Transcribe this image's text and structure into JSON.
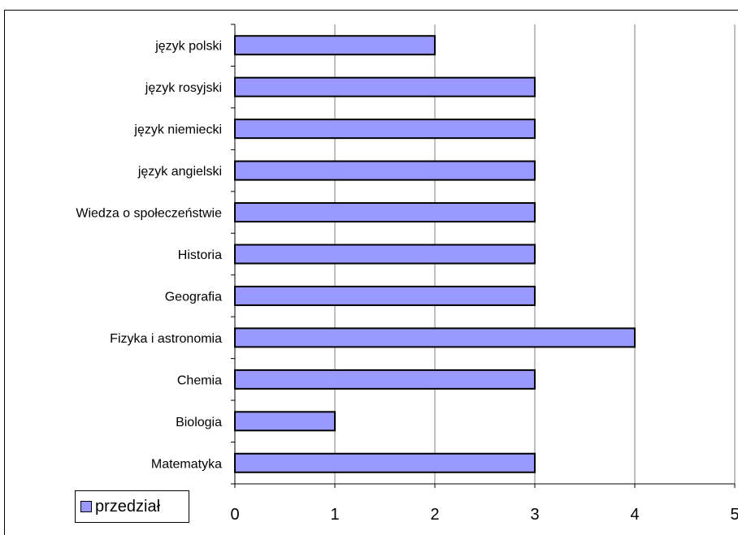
{
  "chart_data": {
    "type": "bar",
    "orientation": "horizontal",
    "categories": [
      "język polski",
      "język rosyjski",
      "język niemiecki",
      "język angielski",
      "Wiedza o społeczeństwie",
      "Historia",
      "Geografia",
      "Fizyka i astronomia",
      "Chemia",
      "Biologia",
      "Matematyka"
    ],
    "series": [
      {
        "name": "przedział",
        "values": [
          2,
          3,
          3,
          3,
          3,
          3,
          3,
          4,
          3,
          1,
          3
        ],
        "color": "#9999ff"
      }
    ],
    "xlim": [
      0,
      5
    ],
    "xticks": [
      "0",
      "1",
      "2",
      "3",
      "4",
      "5"
    ],
    "grid": true,
    "legend_position": "bottom-left"
  },
  "legend": {
    "label": "przedział"
  }
}
